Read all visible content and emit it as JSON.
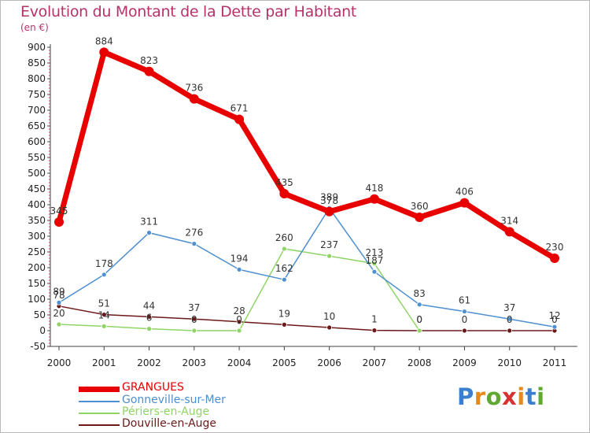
{
  "title": "Evolution du Montant de la Dette par Habitant",
  "unit": "(en €)",
  "brand": {
    "text": "Proxiti",
    "letter_colors": [
      "#3a7fd0",
      "#e68a1e",
      "#5fa832",
      "#d63232",
      "#e68a1e",
      "#3a7fd0",
      "#5fa832"
    ]
  },
  "chart_data": {
    "type": "line",
    "x": [
      "2000",
      "2001",
      "2002",
      "2003",
      "2004",
      "2005",
      "2006",
      "2007",
      "2008",
      "2009",
      "2010",
      "2011"
    ],
    "ylim": [
      -50,
      900
    ],
    "ytick_step": 50,
    "grid": false,
    "legend_position": "bottom-left",
    "series": [
      {
        "name": "GRANGUES",
        "color": "#e80000",
        "values": [
          345,
          884,
          823,
          736,
          671,
          435,
          378,
          418,
          360,
          406,
          314,
          230
        ]
      },
      {
        "name": "Gonneville-sur-Mer",
        "color": "#4d8fd0",
        "values": [
          89,
          178,
          311,
          276,
          194,
          162,
          389,
          187,
          83,
          61,
          37,
          12
        ]
      },
      {
        "name": "Périers-en-Auge",
        "color": "#8fd466",
        "values": [
          20,
          14,
          6,
          0,
          0,
          260,
          237,
          213,
          0,
          null,
          null,
          null
        ]
      },
      {
        "name": "Douville-en-Auge",
        "color": "#6b1818",
        "values": [
          78,
          51,
          44,
          37,
          28,
          19,
          10,
          1,
          0,
          0,
          0,
          0
        ]
      }
    ]
  }
}
